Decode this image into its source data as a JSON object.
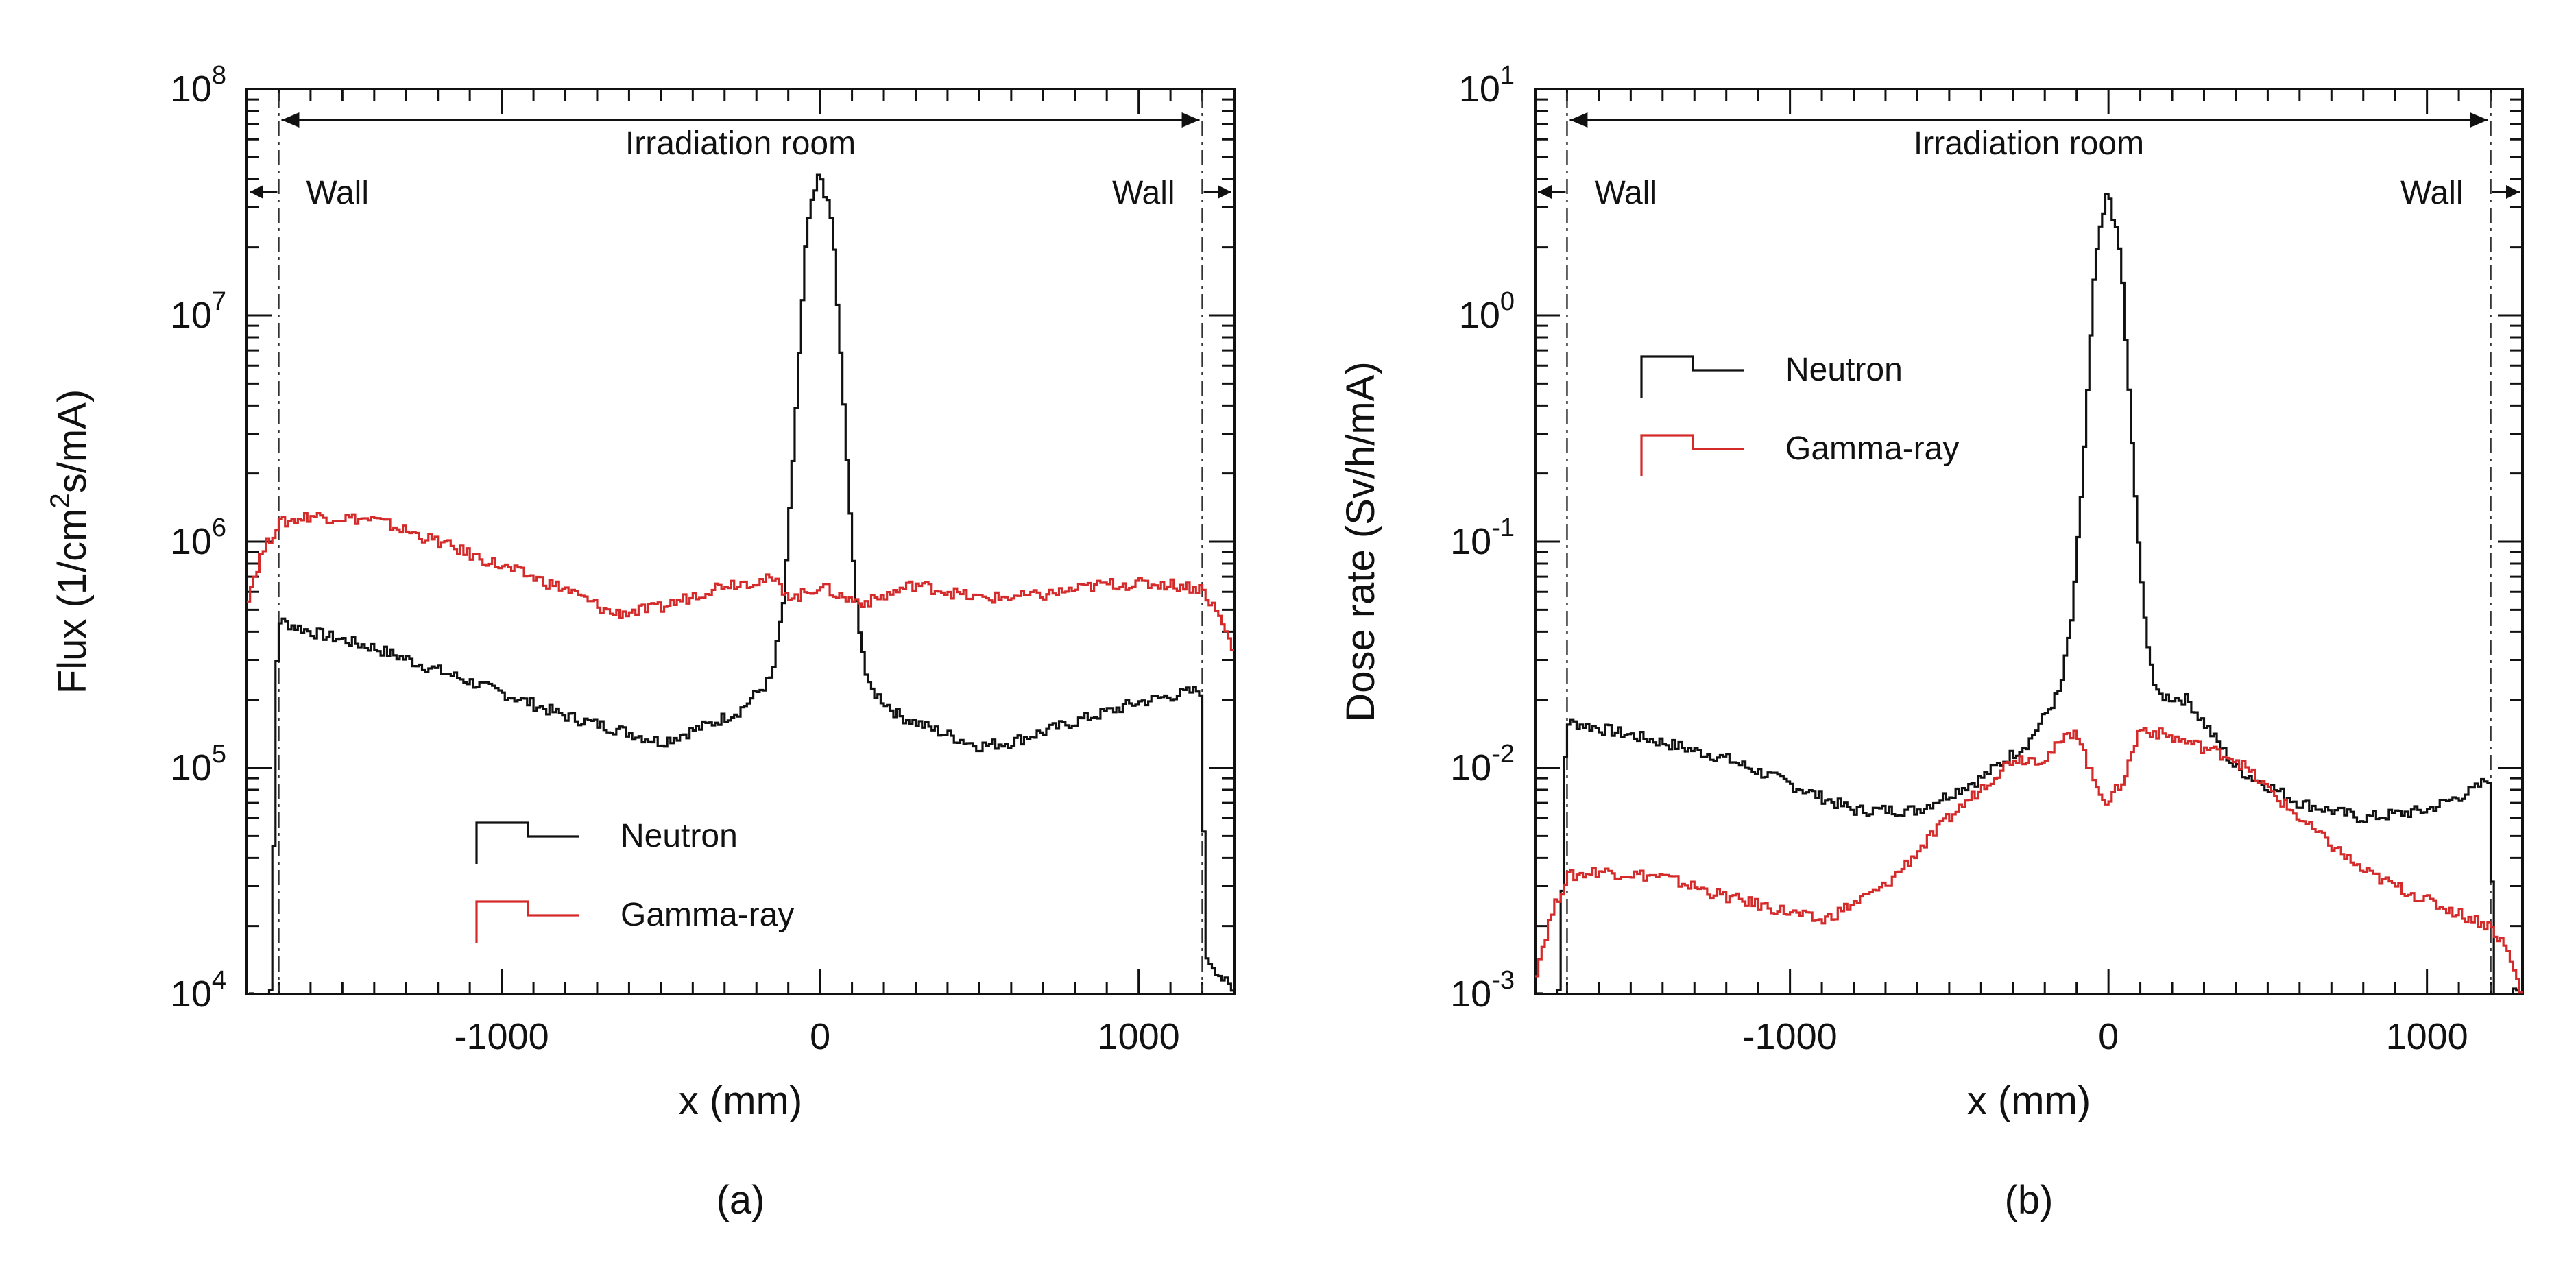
{
  "charts": [
    {
      "caption": "(a)",
      "chart_data": {
        "type": "line",
        "step": true,
        "xlabel": "x (mm)",
        "ylabel_parts": [
          "Flux (1/cm",
          "2",
          "s/mA)"
        ],
        "xlim": [
          -1800,
          1300
        ],
        "ylim": [
          10000,
          100000000
        ],
        "yscale": "log",
        "xticks": [
          -1000,
          0,
          1000
        ],
        "xtick_labels": [
          "-1000",
          "0",
          "1000"
        ],
        "ytick_exponents": [
          4,
          5,
          6,
          7,
          8
        ],
        "ytick_base": "10",
        "wall_lines_x": [
          -1700,
          1200
        ],
        "annotations": {
          "room": "Irradiation room",
          "wall_left": "Wall",
          "wall_right": "Wall"
        },
        "legend_position": "bottom-center",
        "series": [
          {
            "name": "Neutron",
            "color": "#111111",
            "points": [
              [
                -1800,
                10000
              ],
              [
                -1720,
                10000
              ],
              [
                -1710,
                200000
              ],
              [
                -1700,
                450000
              ],
              [
                -1600,
                400000
              ],
              [
                -1400,
                340000
              ],
              [
                -1200,
                270000
              ],
              [
                -1000,
                215000
              ],
              [
                -800,
                170000
              ],
              [
                -650,
                150000
              ],
              [
                -500,
                130000
              ],
              [
                -350,
                155000
              ],
              [
                -250,
                180000
              ],
              [
                -150,
                250000
              ],
              [
                -110,
                600000
              ],
              [
                -80,
                3000000
              ],
              [
                -40,
                25000000
              ],
              [
                0,
                43000000
              ],
              [
                40,
                25000000
              ],
              [
                80,
                3000000
              ],
              [
                110,
                600000
              ],
              [
                150,
                230000
              ],
              [
                250,
                170000
              ],
              [
                400,
                140000
              ],
              [
                500,
                125000
              ],
              [
                600,
                130000
              ],
              [
                800,
                160000
              ],
              [
                1000,
                195000
              ],
              [
                1150,
                215000
              ],
              [
                1195,
                220000
              ],
              [
                1205,
                50000
              ],
              [
                1210,
                15000
              ],
              [
                1300,
                10000
              ]
            ]
          },
          {
            "name": "Gamma-ray",
            "color": "#d42a2a",
            "points": [
              [
                -1800,
                550000
              ],
              [
                -1750,
                900000
              ],
              [
                -1700,
                1200000
              ],
              [
                -1600,
                1300000
              ],
              [
                -1400,
                1250000
              ],
              [
                -1200,
                1000000
              ],
              [
                -1000,
                780000
              ],
              [
                -800,
                620000
              ],
              [
                -650,
                480000
              ],
              [
                -500,
                510000
              ],
              [
                -300,
                650000
              ],
              [
                -150,
                680000
              ],
              [
                -80,
                560000
              ],
              [
                0,
                640000
              ],
              [
                80,
                560000
              ],
              [
                150,
                540000
              ],
              [
                300,
                650000
              ],
              [
                500,
                560000
              ],
              [
                700,
                580000
              ],
              [
                900,
                650000
              ],
              [
                1100,
                650000
              ],
              [
                1200,
                620000
              ],
              [
                1250,
                480000
              ],
              [
                1300,
                330000
              ]
            ]
          }
        ]
      }
    },
    {
      "caption": "(b)",
      "chart_data": {
        "type": "line",
        "step": true,
        "xlabel": "x (mm)",
        "ylabel_parts": [
          "Dose rate (Sv/h/mA)",
          "",
          ""
        ],
        "xlim": [
          -1800,
          1300
        ],
        "ylim": [
          0.001,
          10
        ],
        "yscale": "log",
        "xticks": [
          -1000,
          0,
          1000
        ],
        "xtick_labels": [
          "-1000",
          "0",
          "1000"
        ],
        "ytick_exponents": [
          -3,
          -2,
          -1,
          0,
          1
        ],
        "ytick_base": "10",
        "wall_lines_x": [
          -1700,
          1200
        ],
        "annotations": {
          "room": "Irradiation room",
          "wall_left": "Wall",
          "wall_right": "Wall"
        },
        "legend_position": "upper-left",
        "series": [
          {
            "name": "Neutron",
            "color": "#111111",
            "points": [
              [
                -1800,
                0.001
              ],
              [
                -1720,
                0.001
              ],
              [
                -1710,
                0.008
              ],
              [
                -1700,
                0.016
              ],
              [
                -1600,
                0.015
              ],
              [
                -1400,
                0.013
              ],
              [
                -1200,
                0.011
              ],
              [
                -1000,
                0.0085
              ],
              [
                -800,
                0.0065
              ],
              [
                -600,
                0.0065
              ],
              [
                -400,
                0.009
              ],
              [
                -250,
                0.013
              ],
              [
                -150,
                0.022
              ],
              [
                -110,
                0.05
              ],
              [
                -80,
                0.2
              ],
              [
                -40,
                1.8
              ],
              [
                0,
                3.6
              ],
              [
                40,
                1.8
              ],
              [
                80,
                0.2
              ],
              [
                110,
                0.05
              ],
              [
                150,
                0.021
              ],
              [
                250,
                0.02
              ],
              [
                400,
                0.01
              ],
              [
                600,
                0.007
              ],
              [
                800,
                0.006
              ],
              [
                1000,
                0.0065
              ],
              [
                1150,
                0.008
              ],
              [
                1195,
                0.009
              ],
              [
                1205,
                0.003
              ],
              [
                1215,
                0.001
              ],
              [
                1300,
                0.001
              ]
            ]
          },
          {
            "name": "Gamma-ray",
            "color": "#d42a2a",
            "points": [
              [
                -1800,
                0.0012
              ],
              [
                -1750,
                0.0022
              ],
              [
                -1700,
                0.0033
              ],
              [
                -1600,
                0.0035
              ],
              [
                -1400,
                0.0033
              ],
              [
                -1200,
                0.0027
              ],
              [
                -1000,
                0.0023
              ],
              [
                -900,
                0.0021
              ],
              [
                -700,
                0.003
              ],
              [
                -500,
                0.006
              ],
              [
                -300,
                0.011
              ],
              [
                -200,
                0.011
              ],
              [
                -100,
                0.015
              ],
              [
                -50,
                0.009
              ],
              [
                0,
                0.007
              ],
              [
                50,
                0.009
              ],
              [
                100,
                0.015
              ],
              [
                250,
                0.013
              ],
              [
                400,
                0.011
              ],
              [
                600,
                0.006
              ],
              [
                800,
                0.0035
              ],
              [
                1000,
                0.0026
              ],
              [
                1200,
                0.002
              ],
              [
                1250,
                0.0016
              ],
              [
                1300,
                0.001
              ]
            ]
          }
        ]
      }
    }
  ]
}
